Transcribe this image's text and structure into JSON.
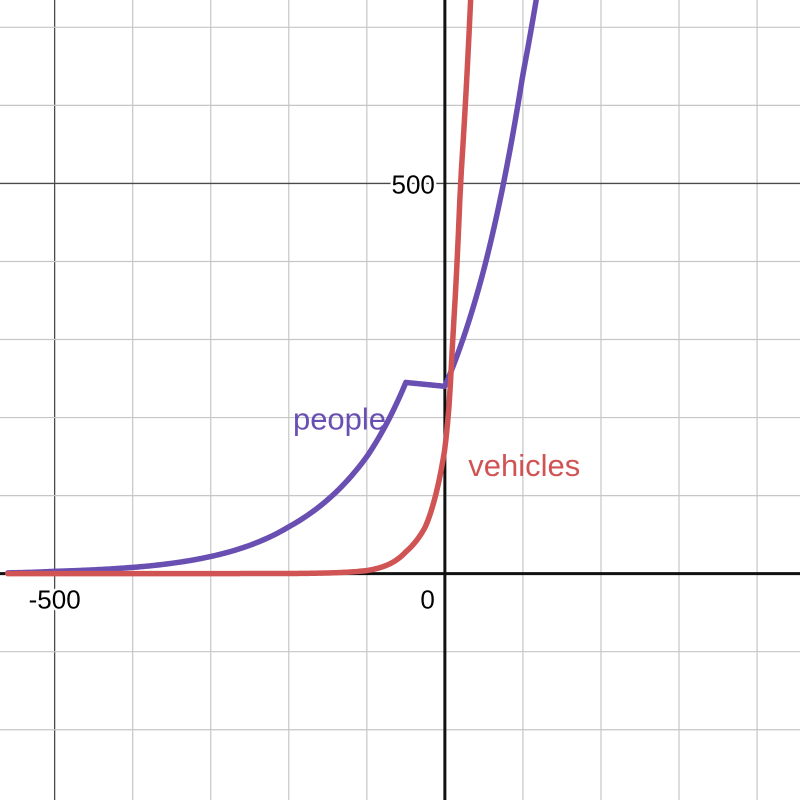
{
  "chart_data": {
    "type": "line",
    "title": "",
    "xlabel": "",
    "ylabel": "",
    "xlim": [
      -570,
      455
    ],
    "ylim": [
      -290,
      735
    ],
    "grid": true,
    "x_ticks": [
      {
        "value": -500,
        "label": "-500"
      },
      {
        "value": 0,
        "label": "0"
      }
    ],
    "y_ticks": [
      {
        "value": 500,
        "label": "500"
      }
    ],
    "series": [
      {
        "name": "people",
        "color": "#6a4fb3",
        "function": "exponential",
        "points": [
          {
            "x": -560,
            "y": 1
          },
          {
            "x": -500,
            "y": 3
          },
          {
            "x": -400,
            "y": 8
          },
          {
            "x": -300,
            "y": 22
          },
          {
            "x": -200,
            "y": 60
          },
          {
            "x": -100,
            "y": 150
          },
          {
            "x": -50,
            "y": 245
          },
          {
            "x": 0,
            "y": 240
          },
          {
            "x": 50,
            "y": 390
          },
          {
            "x": 100,
            "y": 640
          },
          {
            "x": 117,
            "y": 735
          }
        ]
      },
      {
        "name": "vehicles",
        "color": "#d05454",
        "function": "exponential",
        "points": [
          {
            "x": -560,
            "y": 0
          },
          {
            "x": -200,
            "y": 0.2
          },
          {
            "x": -100,
            "y": 4
          },
          {
            "x": -50,
            "y": 28
          },
          {
            "x": -25,
            "y": 60
          },
          {
            "x": 0,
            "y": 160
          },
          {
            "x": 5,
            "y": 210
          },
          {
            "x": 10,
            "y": 300
          },
          {
            "x": 20,
            "y": 500
          },
          {
            "x": 33,
            "y": 735
          }
        ]
      }
    ]
  }
}
